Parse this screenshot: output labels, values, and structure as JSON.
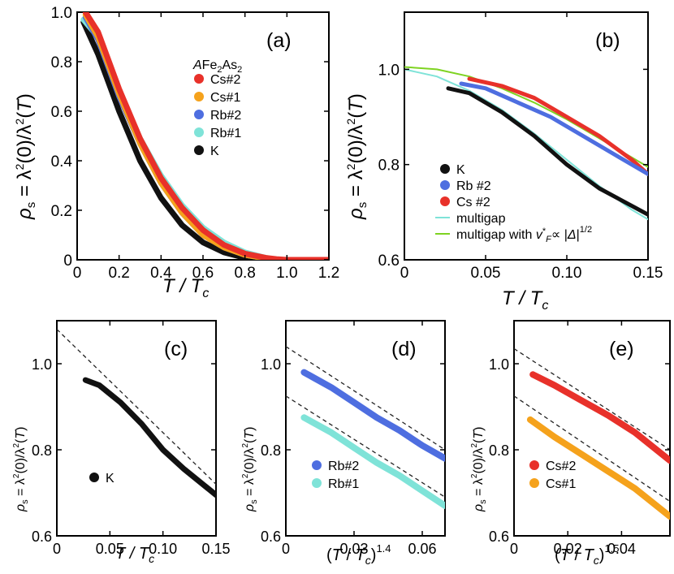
{
  "chart_data": [
    {
      "type": "line",
      "panel": "(a)",
      "xlabel": "T / Tc",
      "ylabel": "ρs = λ²(0)/λ²(T)",
      "xlim": [
        0,
        1.2
      ],
      "ylim": [
        0,
        1.0
      ],
      "xticks": [
        "0",
        "0.2",
        "0.4",
        "0.6",
        "0.8",
        "1.0",
        "1.2"
      ],
      "yticks": [
        "0",
        "0.2",
        "0.4",
        "0.6",
        "0.8",
        "1.0"
      ],
      "legend_title": "AFe2As2",
      "series": [
        {
          "name": "Cs#2",
          "color": "#e8312a",
          "x": [
            0.04,
            0.1,
            0.2,
            0.3,
            0.4,
            0.5,
            0.6,
            0.7,
            0.8,
            0.9,
            0.95,
            1.0,
            1.2
          ],
          "y": [
            1.0,
            0.92,
            0.69,
            0.49,
            0.33,
            0.21,
            0.12,
            0.06,
            0.025,
            0.008,
            0.003,
            0,
            0
          ]
        },
        {
          "name": "Cs#1",
          "color": "#f5a21c",
          "x": [
            0.04,
            0.1,
            0.2,
            0.3,
            0.4,
            0.5,
            0.6,
            0.7,
            0.8,
            0.9,
            0.95
          ],
          "y": [
            0.99,
            0.9,
            0.67,
            0.47,
            0.31,
            0.19,
            0.1,
            0.05,
            0.02,
            0.005,
            0
          ]
        },
        {
          "name": "Rb#2",
          "color": "#4e6ee0",
          "x": [
            0.04,
            0.1,
            0.2,
            0.3,
            0.4,
            0.5,
            0.6,
            0.7,
            0.8,
            0.9,
            0.95
          ],
          "y": [
            0.98,
            0.89,
            0.66,
            0.47,
            0.31,
            0.19,
            0.1,
            0.05,
            0.02,
            0.005,
            0
          ]
        },
        {
          "name": "Rb#1",
          "color": "#7fe3d8",
          "x": [
            0.03,
            0.1,
            0.2,
            0.3,
            0.4,
            0.5,
            0.6,
            0.7,
            0.8,
            0.9,
            0.95
          ],
          "y": [
            0.97,
            0.9,
            0.68,
            0.49,
            0.34,
            0.22,
            0.13,
            0.07,
            0.03,
            0.008,
            0
          ]
        },
        {
          "name": "K",
          "color": "#111111",
          "x": [
            0.03,
            0.1,
            0.2,
            0.3,
            0.4,
            0.5,
            0.6,
            0.7,
            0.8,
            0.85
          ],
          "y": [
            0.96,
            0.83,
            0.6,
            0.4,
            0.25,
            0.14,
            0.07,
            0.03,
            0.008,
            0
          ]
        }
      ]
    },
    {
      "type": "line",
      "panel": "(b)",
      "xlabel": "T / Tc",
      "ylabel": "ρs = λ²(0)/λ²(T)",
      "xlim": [
        0,
        0.15
      ],
      "ylim": [
        0.6,
        1.12
      ],
      "xticks": [
        "0",
        "0.05",
        "0.10",
        "0.15"
      ],
      "yticks": [
        "0.6",
        "0.8",
        "1.0"
      ],
      "series": [
        {
          "name": "K",
          "color": "#111111",
          "x": [
            0.027,
            0.04,
            0.06,
            0.08,
            0.1,
            0.12,
            0.15
          ],
          "y": [
            0.96,
            0.95,
            0.91,
            0.86,
            0.8,
            0.75,
            0.695
          ]
        },
        {
          "name": "Rb #2",
          "color": "#4e6ee0",
          "x": [
            0.035,
            0.05,
            0.07,
            0.09,
            0.11,
            0.13,
            0.15
          ],
          "y": [
            0.97,
            0.96,
            0.93,
            0.9,
            0.86,
            0.82,
            0.78
          ]
        },
        {
          "name": "Cs #2",
          "color": "#e8312a",
          "x": [
            0.04,
            0.06,
            0.08,
            0.1,
            0.12,
            0.14,
            0.15
          ],
          "y": [
            0.98,
            0.965,
            0.94,
            0.9,
            0.86,
            0.81,
            0.78
          ]
        },
        {
          "name": "multigap",
          "color": "#7fe3d8",
          "x": [
            0,
            0.02,
            0.04,
            0.06,
            0.08,
            0.1,
            0.12,
            0.14,
            0.15
          ],
          "y": [
            1.0,
            0.985,
            0.955,
            0.915,
            0.865,
            0.81,
            0.755,
            0.705,
            0.685
          ]
        },
        {
          "name": "multigap with v*F ∝ |Δ|^1/2",
          "color": "#7ed321",
          "x": [
            0,
            0.02,
            0.04,
            0.06,
            0.08,
            0.1,
            0.12,
            0.14,
            0.15
          ],
          "y": [
            1.005,
            1.0,
            0.985,
            0.96,
            0.93,
            0.895,
            0.855,
            0.815,
            0.795
          ]
        }
      ]
    },
    {
      "type": "line",
      "panel": "(c)",
      "xlabel": "T / Tc",
      "ylabel": "ρs = λ²(0)/λ²(T)",
      "xlim": [
        0,
        0.15
      ],
      "ylim": [
        0.6,
        1.1
      ],
      "xticks": [
        "0",
        "0.05",
        "0.10",
        "0.15"
      ],
      "yticks": [
        "0.6",
        "0.8",
        "1.0"
      ],
      "series": [
        {
          "name": "K",
          "color": "#111111",
          "x": [
            0.027,
            0.04,
            0.06,
            0.08,
            0.1,
            0.12,
            0.15
          ],
          "y": [
            0.962,
            0.95,
            0.91,
            0.86,
            0.8,
            0.755,
            0.695
          ]
        }
      ],
      "guides": [
        {
          "style": "dashed",
          "x": [
            0,
            0.15
          ],
          "y": [
            1.08,
            0.72
          ]
        }
      ]
    },
    {
      "type": "line",
      "panel": "(d)",
      "xlabel": "(T / Tc)^1.4",
      "ylabel": "ρs = λ²(0)/λ²(T)",
      "xlim": [
        0,
        0.07
      ],
      "ylim": [
        0.6,
        1.1
      ],
      "xticks": [
        "0",
        "0.03",
        "0.06"
      ],
      "yticks": [
        "0.6",
        "0.8",
        "1.0"
      ],
      "series": [
        {
          "name": "Rb#2",
          "color": "#4e6ee0",
          "x": [
            0.008,
            0.02,
            0.03,
            0.04,
            0.05,
            0.06,
            0.07
          ],
          "y": [
            0.98,
            0.945,
            0.91,
            0.875,
            0.845,
            0.81,
            0.78
          ]
        },
        {
          "name": "Rb#1",
          "color": "#7fe3d8",
          "x": [
            0.008,
            0.02,
            0.03,
            0.04,
            0.05,
            0.06,
            0.07
          ],
          "y": [
            0.875,
            0.84,
            0.805,
            0.77,
            0.74,
            0.705,
            0.67
          ]
        }
      ],
      "guides": [
        {
          "style": "dashed",
          "x": [
            0,
            0.07
          ],
          "y": [
            1.04,
            0.8
          ]
        },
        {
          "style": "dashed",
          "x": [
            0,
            0.07
          ],
          "y": [
            0.925,
            0.69
          ]
        }
      ]
    },
    {
      "type": "line",
      "panel": "(e)",
      "xlabel": "(T / Tc)^1.5",
      "ylabel": "ρs = λ²(0)/λ²(T)",
      "xlim": [
        0,
        0.058
      ],
      "ylim": [
        0.6,
        1.1
      ],
      "xticks": [
        "0",
        "0.02",
        "0.04"
      ],
      "yticks": [
        "0.6",
        "0.8",
        "1.0"
      ],
      "series": [
        {
          "name": "Cs#2",
          "color": "#e8312a",
          "x": [
            0.007,
            0.015,
            0.025,
            0.035,
            0.045,
            0.058
          ],
          "y": [
            0.975,
            0.95,
            0.915,
            0.88,
            0.84,
            0.775
          ]
        },
        {
          "name": "Cs#1",
          "color": "#f5a21c",
          "x": [
            0.006,
            0.015,
            0.025,
            0.035,
            0.045,
            0.058
          ],
          "y": [
            0.87,
            0.83,
            0.79,
            0.75,
            0.71,
            0.645
          ]
        }
      ],
      "guides": [
        {
          "style": "dashed",
          "x": [
            0,
            0.058
          ],
          "y": [
            1.035,
            0.8
          ]
        },
        {
          "style": "dashed",
          "x": [
            0,
            0.058
          ],
          "y": [
            0.925,
            0.68
          ]
        }
      ]
    }
  ]
}
